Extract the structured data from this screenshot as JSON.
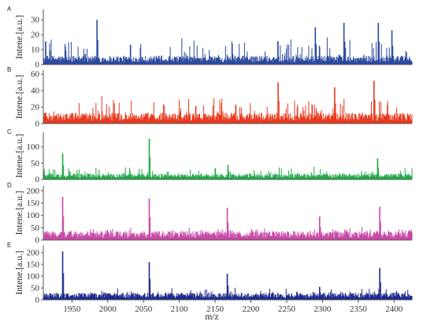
{
  "chart_data": {
    "type": "line",
    "x_axis": {
      "label": "m/z",
      "range": [
        1910,
        2425
      ],
      "ticks": [
        1950,
        2000,
        2050,
        2100,
        2150,
        2200,
        2250,
        2300,
        2350,
        2400
      ]
    },
    "panels": [
      {
        "letter": "A",
        "ylabel": "Intene.[a.u.]",
        "ylim": [
          0,
          37
        ],
        "yticks": [
          0,
          10,
          20,
          30
        ],
        "color": "#2b4aa0",
        "noise_level": 5,
        "noise_spike": 14,
        "peaks": [
          {
            "x": 1985,
            "y": 30
          },
          {
            "x": 2290,
            "y": 25
          },
          {
            "x": 2330,
            "y": 28
          },
          {
            "x": 2378,
            "y": 28
          },
          {
            "x": 2397,
            "y": 23
          }
        ]
      },
      {
        "letter": "B",
        "ylabel": "Intene.[a.u.]",
        "ylim": [
          0,
          65
        ],
        "yticks": [
          0,
          20,
          40,
          60
        ],
        "color": "#e8391d",
        "noise_level": 11,
        "noise_spike": 22,
        "peaks": [
          {
            "x": 2238,
            "y": 50
          },
          {
            "x": 2372,
            "y": 52
          },
          {
            "x": 2317,
            "y": 44
          }
        ]
      },
      {
        "letter": "C",
        "ylabel": "Intene.[a.u.]",
        "ylim": [
          0,
          145
        ],
        "yticks": [
          0,
          50,
          100
        ],
        "color": "#1faa4a",
        "noise_level": 15,
        "noise_spike": 25,
        "peaks": [
          {
            "x": 1937,
            "y": 80
          },
          {
            "x": 2058,
            "y": 125
          },
          {
            "x": 2168,
            "y": 45
          },
          {
            "x": 2377,
            "y": 65
          }
        ]
      },
      {
        "letter": "D",
        "ylabel": "Intene.[a.u.]",
        "ylim": [
          0,
          220
        ],
        "yticks": [
          0,
          50,
          100,
          150,
          200
        ],
        "color": "#c948a6",
        "noise_level": 30,
        "noise_spike": 20,
        "peaks": [
          {
            "x": 1937,
            "y": 175
          },
          {
            "x": 2058,
            "y": 168
          },
          {
            "x": 2167,
            "y": 130
          },
          {
            "x": 2296,
            "y": 95
          },
          {
            "x": 2380,
            "y": 135
          }
        ]
      },
      {
        "letter": "E",
        "ylabel": "Intene.[a.u.]",
        "ylim": [
          0,
          230
        ],
        "yticks": [
          0,
          50,
          100,
          150,
          200
        ],
        "color": "#1c2a8c",
        "noise_level": 25,
        "noise_spike": 25,
        "peaks": [
          {
            "x": 1937,
            "y": 205
          },
          {
            "x": 2058,
            "y": 160
          },
          {
            "x": 2167,
            "y": 110
          },
          {
            "x": 2296,
            "y": 55
          },
          {
            "x": 2380,
            "y": 135
          }
        ]
      }
    ]
  }
}
